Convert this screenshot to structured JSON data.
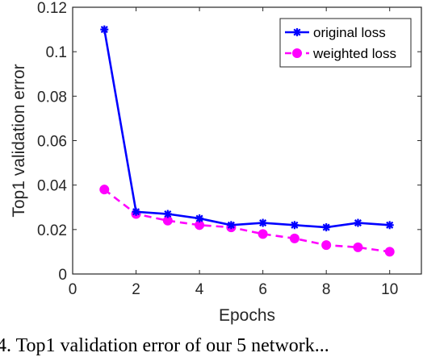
{
  "chart_data": {
    "type": "line",
    "xlabel": "Epochs",
    "ylabel": "Top1 validation error",
    "xlim": [
      0,
      11
    ],
    "ylim": [
      0,
      0.12
    ],
    "xticks": [
      "0",
      "2",
      "4",
      "6",
      "8",
      "10"
    ],
    "yticks": [
      "0",
      "0.02",
      "0.04",
      "0.06",
      "0.08",
      "0.1",
      "0.12"
    ],
    "grid": false,
    "legend_position": "top-right",
    "x": [
      1,
      2,
      3,
      4,
      5,
      6,
      7,
      8,
      9,
      10
    ],
    "series": [
      {
        "name": "original loss",
        "color": "#0000ff",
        "line_style": "solid",
        "marker": "asterisk",
        "values": [
          0.11,
          0.028,
          0.027,
          0.025,
          0.022,
          0.023,
          0.022,
          0.021,
          0.023,
          0.022
        ]
      },
      {
        "name": "weighted loss",
        "color": "#ff00ff",
        "line_style": "dashed",
        "marker": "circle",
        "values": [
          0.038,
          0.027,
          0.024,
          0.022,
          0.021,
          0.018,
          0.016,
          0.013,
          0.012,
          0.01
        ]
      }
    ]
  },
  "caption": "4. Top1 validation error of our 5 network..."
}
